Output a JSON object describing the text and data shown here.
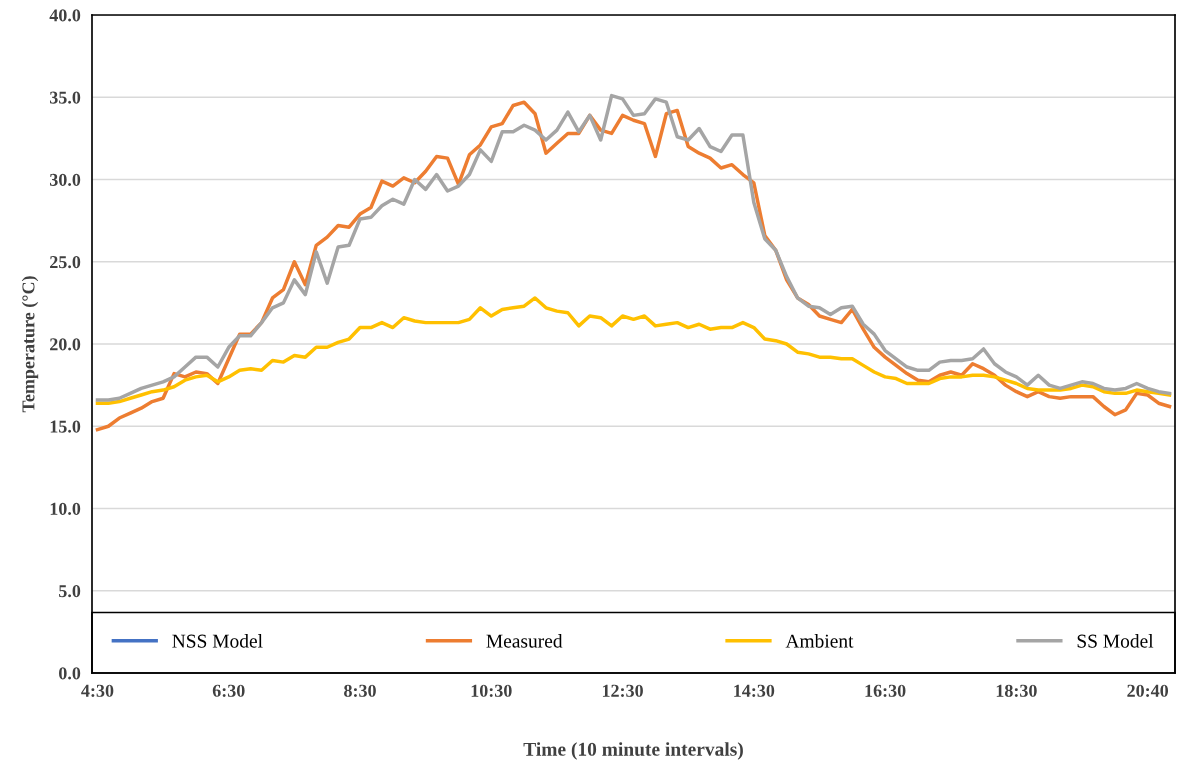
{
  "chart_data": {
    "type": "line",
    "xlabel": "Time (10 minute intervals)",
    "ylabel": "Temperature (°C)",
    "categories": [
      "4:30",
      null,
      null,
      null,
      null,
      null,
      null,
      null,
      null,
      null,
      null,
      null,
      "6:30",
      null,
      null,
      null,
      null,
      null,
      null,
      null,
      null,
      null,
      null,
      null,
      "8:30",
      null,
      null,
      null,
      null,
      null,
      null,
      null,
      null,
      null,
      null,
      null,
      "10:30",
      null,
      null,
      null,
      null,
      null,
      null,
      null,
      null,
      null,
      null,
      null,
      "12:30",
      null,
      null,
      null,
      null,
      null,
      null,
      null,
      null,
      null,
      null,
      null,
      "14:30",
      null,
      null,
      null,
      null,
      null,
      null,
      null,
      null,
      null,
      null,
      null,
      "16:30",
      null,
      null,
      null,
      null,
      null,
      null,
      null,
      null,
      null,
      null,
      null,
      "18:30",
      null,
      null,
      null,
      null,
      null,
      null,
      null,
      null,
      null,
      null,
      null,
      "20:40",
      null,
      null
    ],
    "ylim": [
      0,
      40
    ],
    "yticks": [
      {
        "value": 0,
        "label": "0.0"
      },
      {
        "value": 5,
        "label": "5.0"
      },
      {
        "value": 10,
        "label": "10.0"
      },
      {
        "value": 15,
        "label": "15.0"
      },
      {
        "value": 20,
        "label": "20.0"
      },
      {
        "value": 25,
        "label": "25.0"
      },
      {
        "value": 30,
        "label": "30.0"
      },
      {
        "value": 35,
        "label": "35.0"
      },
      {
        "value": 40,
        "label": "40.0"
      }
    ],
    "grid": "y",
    "legend": "bottom",
    "marker": "none",
    "line_style": "solid",
    "series": [
      {
        "name": "NSS Model",
        "color": "#4472c4",
        "values": [
          null,
          null,
          null,
          null,
          null,
          null,
          null,
          null,
          null,
          null,
          null,
          null,
          null,
          null,
          null,
          null,
          null,
          null,
          null,
          null,
          null,
          null,
          null,
          null,
          null,
          null,
          null,
          null,
          null,
          null,
          null,
          null,
          null,
          null,
          null,
          null,
          null,
          null,
          null,
          null,
          null,
          null,
          null,
          null,
          null,
          null,
          null,
          null,
          null,
          null,
          null,
          null,
          null,
          null,
          null,
          null,
          null,
          null,
          null,
          null,
          null,
          null,
          null,
          null,
          null,
          null,
          null,
          null,
          null,
          null,
          null,
          null,
          null,
          null,
          null,
          null,
          null,
          null,
          null,
          null,
          null,
          null,
          null,
          null,
          null,
          null,
          null,
          null,
          null,
          null,
          null,
          null,
          null,
          null,
          null,
          null,
          null,
          null,
          null
        ]
      },
      {
        "name": "Measured",
        "color": "#ed7d31",
        "values": [
          14.8,
          15.0,
          15.5,
          15.8,
          16.1,
          16.5,
          16.7,
          18.2,
          18.0,
          18.3,
          18.2,
          17.6,
          19.1,
          20.6,
          20.6,
          21.3,
          22.8,
          23.3,
          25.0,
          23.6,
          26.0,
          26.5,
          27.2,
          27.1,
          27.9,
          28.3,
          29.9,
          29.6,
          30.1,
          29.8,
          30.5,
          31.4,
          31.3,
          29.7,
          31.5,
          32.1,
          33.2,
          33.4,
          34.5,
          34.7,
          34.0,
          31.6,
          32.2,
          32.8,
          32.8,
          33.9,
          33.0,
          32.8,
          33.9,
          33.6,
          33.4,
          31.4,
          34.0,
          34.2,
          32.0,
          31.6,
          31.3,
          30.7,
          30.9,
          30.3,
          29.8,
          26.6,
          25.7,
          23.9,
          22.8,
          22.4,
          21.7,
          21.5,
          21.3,
          22.1,
          20.9,
          19.8,
          19.2,
          18.7,
          18.2,
          17.8,
          17.7,
          18.1,
          18.3,
          18.1,
          18.8,
          18.5,
          18.1,
          17.5,
          17.1,
          16.8,
          17.1,
          16.8,
          16.7,
          16.8,
          16.8,
          16.8,
          16.2,
          15.7,
          16.0,
          17.0,
          16.9,
          16.4,
          16.2
        ]
      },
      {
        "name": "Ambient",
        "color": "#ffc000",
        "values": [
          16.4,
          16.4,
          16.5,
          16.7,
          16.9,
          17.1,
          17.2,
          17.4,
          17.8,
          18.0,
          18.1,
          17.7,
          18.0,
          18.4,
          18.5,
          18.4,
          19.0,
          18.9,
          19.3,
          19.2,
          19.8,
          19.8,
          20.1,
          20.3,
          21.0,
          21.0,
          21.3,
          21.0,
          21.6,
          21.4,
          21.3,
          21.3,
          21.3,
          21.3,
          21.5,
          22.2,
          21.7,
          22.1,
          22.2,
          22.3,
          22.8,
          22.2,
          22.0,
          21.9,
          21.1,
          21.7,
          21.6,
          21.1,
          21.7,
          21.5,
          21.7,
          21.1,
          21.2,
          21.3,
          21.0,
          21.2,
          20.9,
          21.0,
          21.0,
          21.3,
          21.0,
          20.3,
          20.2,
          20.0,
          19.5,
          19.4,
          19.2,
          19.2,
          19.1,
          19.1,
          18.7,
          18.3,
          18.0,
          17.9,
          17.6,
          17.6,
          17.6,
          17.9,
          18.0,
          18.0,
          18.1,
          18.1,
          18.0,
          17.8,
          17.6,
          17.3,
          17.2,
          17.2,
          17.2,
          17.3,
          17.5,
          17.4,
          17.1,
          17.0,
          17.0,
          17.2,
          17.1,
          17.0,
          16.9
        ]
      },
      {
        "name": "SS Model",
        "color": "#a5a5a5",
        "values": [
          16.6,
          16.6,
          16.7,
          17.0,
          17.3,
          17.5,
          17.7,
          18.0,
          18.6,
          19.2,
          19.2,
          18.6,
          19.8,
          20.5,
          20.5,
          21.3,
          22.2,
          22.5,
          23.9,
          23.0,
          25.6,
          23.7,
          25.9,
          26.0,
          27.6,
          27.7,
          28.4,
          28.8,
          28.5,
          30.0,
          29.4,
          30.3,
          29.3,
          29.6,
          30.3,
          31.8,
          31.1,
          32.9,
          32.9,
          33.3,
          33.0,
          32.4,
          33.0,
          34.1,
          32.9,
          33.9,
          32.4,
          35.1,
          34.9,
          33.9,
          34.0,
          34.9,
          34.7,
          32.6,
          32.4,
          33.1,
          32.0,
          31.7,
          32.7,
          32.7,
          28.6,
          26.4,
          25.7,
          24.1,
          22.8,
          22.3,
          22.2,
          21.8,
          22.2,
          22.3,
          21.2,
          20.6,
          19.6,
          19.1,
          18.6,
          18.4,
          18.4,
          18.9,
          19.0,
          19.0,
          19.1,
          19.7,
          18.8,
          18.3,
          18.0,
          17.5,
          18.1,
          17.5,
          17.3,
          17.5,
          17.7,
          17.6,
          17.3,
          17.2,
          17.3,
          17.6,
          17.3,
          17.1,
          17.0
        ]
      }
    ]
  }
}
